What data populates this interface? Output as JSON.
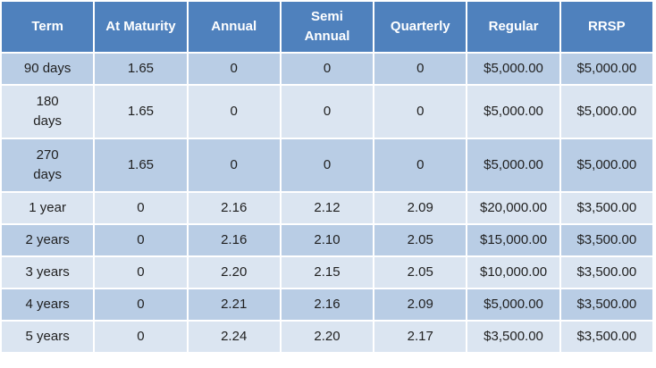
{
  "table": {
    "header": [
      "Term",
      "At Maturity",
      "Annual",
      "Semi Annual",
      "Quarterly",
      "Regular",
      "RRSP"
    ],
    "rows": [
      [
        "90 days",
        "1.65",
        "0",
        "0",
        "0",
        "$5,000.00",
        "$5,000.00"
      ],
      [
        "180 days",
        "1.65",
        "0",
        "0",
        "0",
        "$5,000.00",
        "$5,000.00"
      ],
      [
        "270 days",
        "1.65",
        "0",
        "0",
        "0",
        "$5,000.00",
        "$5,000.00"
      ],
      [
        "1 year",
        "0",
        "2.16",
        "2.12",
        "2.09",
        "$20,000.00",
        "$3,500.00"
      ],
      [
        "2 years",
        "0",
        "2.16",
        "2.10",
        "2.05",
        "$15,000.00",
        "$3,500.00"
      ],
      [
        "3 years",
        "0",
        "2.20",
        "2.15",
        "2.05",
        "$10,000.00",
        "$3,500.00"
      ],
      [
        "4 years",
        "0",
        "2.21",
        "2.16",
        "2.09",
        "$5,000.00",
        "$3,500.00"
      ],
      [
        "5 years",
        "0",
        "2.24",
        "2.20",
        "2.17",
        "$3,500.00",
        "$3,500.00"
      ]
    ]
  }
}
